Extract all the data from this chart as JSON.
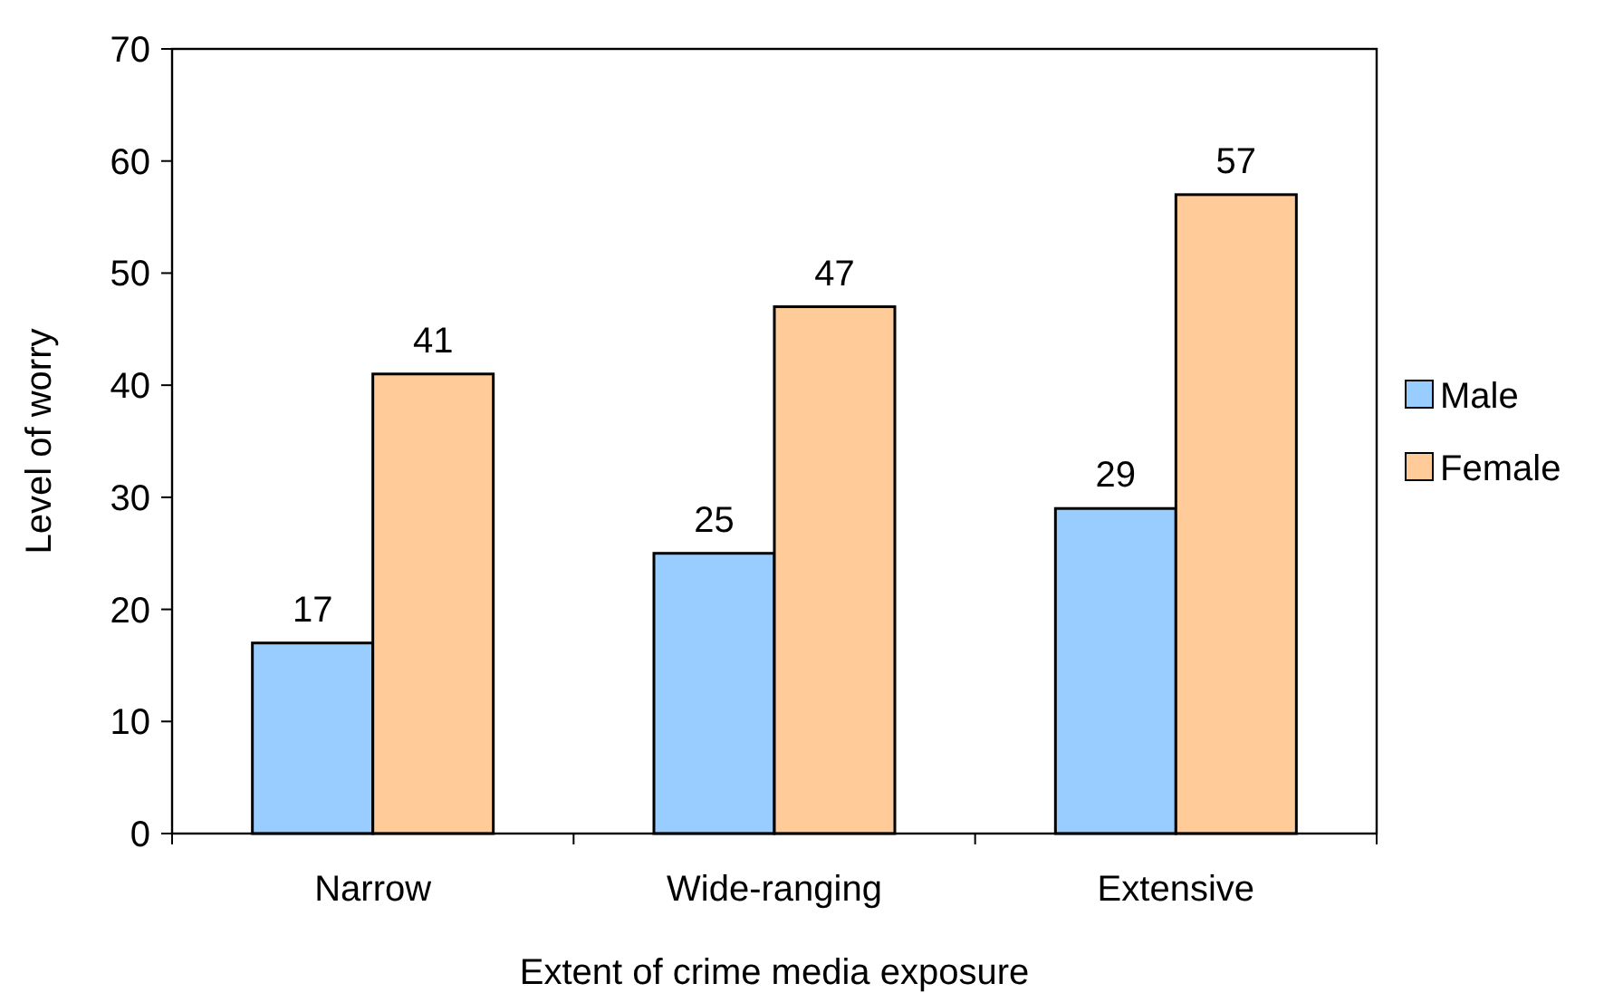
{
  "chart_data": {
    "type": "bar",
    "xlabel": "Extent of crime media exposure",
    "ylabel": "Level of worry",
    "categories": [
      "Narrow",
      "Wide-ranging",
      "Extensive"
    ],
    "series": [
      {
        "name": "Male",
        "color": "#99ccff",
        "values": [
          17,
          25,
          29
        ]
      },
      {
        "name": "Female",
        "color": "#ffcc99",
        "values": [
          41,
          47,
          57
        ]
      }
    ],
    "ylim": [
      0,
      70
    ],
    "yticks": [
      0,
      10,
      20,
      30,
      40,
      50,
      60,
      70
    ],
    "data_labels": true,
    "legend": "right",
    "grid": false
  }
}
